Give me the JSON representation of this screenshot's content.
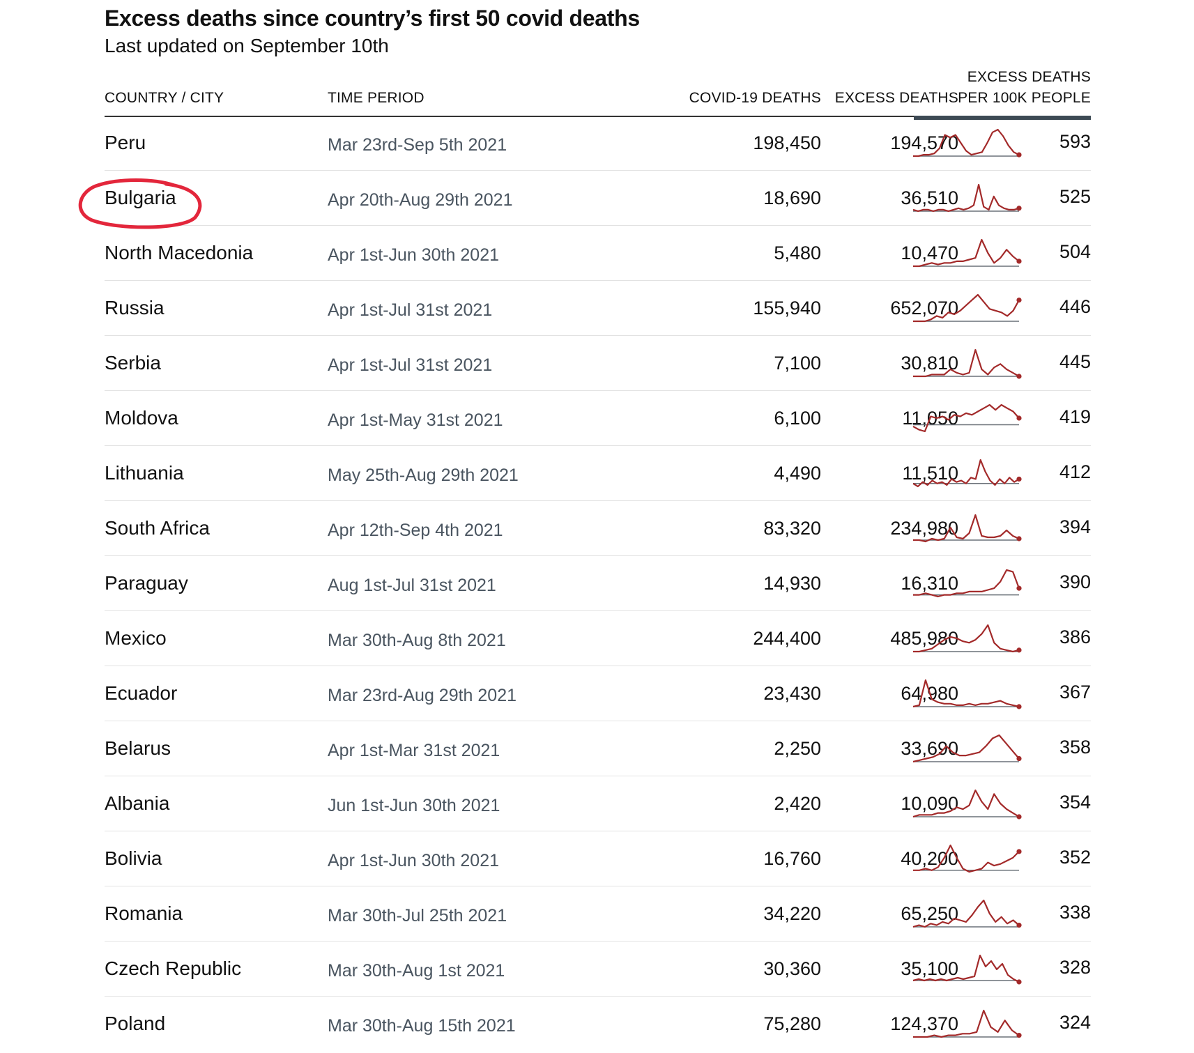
{
  "header": {
    "title": "Excess deaths since country’s first 50 covid deaths",
    "subtitle": "Last updated on September 10th"
  },
  "columns": {
    "country": "COUNTRY / CITY",
    "period": "TIME PERIOD",
    "covid": "COVID-19 DEATHS",
    "excess": "EXCESS DEATHS",
    "per100k_line1": "EXCESS DEATHS",
    "per100k_line2": "PER 100K PEOPLE"
  },
  "colors": {
    "spark_line": "#a32a2a",
    "baseline": "#6a7178",
    "annotation": "#e3263b"
  },
  "highlighted_row": "Bulgaria",
  "rows": [
    {
      "country": "Peru",
      "period": "Mar 23rd-Sep 5th 2021",
      "covid": "198,450",
      "excess": "194,570",
      "per100k": "593",
      "trend": [
        0,
        0,
        1,
        1,
        2,
        6,
        16,
        14,
        16,
        10,
        4,
        1,
        2,
        3,
        10,
        18,
        20,
        15,
        8,
        3,
        1
      ]
    },
    {
      "country": "Bulgaria",
      "period": "Apr 20th-Aug 29th 2021",
      "covid": "18,690",
      "excess": "36,510",
      "per100k": "525",
      "trend": [
        1,
        0,
        1,
        1,
        0,
        1,
        1,
        0,
        1,
        2,
        1,
        2,
        4,
        18,
        3,
        1,
        10,
        4,
        2,
        1,
        1,
        2
      ]
    },
    {
      "country": "North Macedonia",
      "period": "Apr 1st-Jun 30th 2021",
      "covid": "5,480",
      "excess": "10,470",
      "per100k": "504",
      "trend": [
        0,
        0,
        1,
        2,
        1,
        2,
        2,
        3,
        3,
        4,
        5,
        16,
        8,
        2,
        5,
        10,
        6,
        3
      ]
    },
    {
      "country": "Russia",
      "period": "Apr 1st-Jul 31st 2021",
      "covid": "155,940",
      "excess": "652,070",
      "per100k": "446",
      "trend": [
        0,
        0,
        0,
        1,
        3,
        2,
        5,
        4,
        6,
        9,
        12,
        15,
        11,
        7,
        6,
        5,
        3,
        6,
        12
      ]
    },
    {
      "country": "Serbia",
      "period": "Apr 1st-Jul 31st 2021",
      "covid": "7,100",
      "excess": "30,810",
      "per100k": "445",
      "trend": [
        0,
        0,
        0,
        1,
        1,
        1,
        4,
        2,
        1,
        2,
        15,
        4,
        1,
        5,
        7,
        4,
        2,
        0
      ]
    },
    {
      "country": "Moldova",
      "period": "Apr 1st-May 31st 2021",
      "covid": "6,100",
      "excess": "11,050",
      "per100k": "419",
      "trend": [
        -1,
        -3,
        -4,
        5,
        4,
        5,
        3,
        6,
        5,
        7,
        6,
        8,
        10,
        12,
        9,
        12,
        10,
        8,
        4
      ]
    },
    {
      "country": "Lithuania",
      "period": "May 25th-Aug 29th 2021",
      "covid": "4,490",
      "excess": "11,510",
      "per100k": "412",
      "trend": [
        0,
        -2,
        1,
        -1,
        2,
        0,
        1,
        -1,
        3,
        1,
        2,
        0,
        4,
        3,
        16,
        8,
        2,
        -1,
        3,
        0,
        4,
        1,
        3
      ]
    },
    {
      "country": "South Africa",
      "period": "Apr 12th-Sep 4th 2021",
      "covid": "83,320",
      "excess": "234,980",
      "per100k": "394",
      "trend": [
        0,
        0,
        -1,
        1,
        0,
        1,
        9,
        2,
        1,
        5,
        18,
        3,
        2,
        2,
        3,
        7,
        3,
        1
      ]
    },
    {
      "country": "Paraguay",
      "period": "Aug 1st-Jul 31st 2021",
      "covid": "14,930",
      "excess": "16,310",
      "per100k": "390",
      "trend": [
        0,
        0,
        1,
        0,
        -1,
        0,
        0,
        1,
        1,
        2,
        2,
        2,
        3,
        4,
        8,
        15,
        14,
        4
      ]
    },
    {
      "country": "Mexico",
      "period": "Mar 30th-Aug 8th 2021",
      "covid": "244,400",
      "excess": "485,980",
      "per100k": "386",
      "trend": [
        0,
        0,
        1,
        2,
        5,
        8,
        10,
        9,
        7,
        6,
        8,
        12,
        18,
        6,
        2,
        1,
        0,
        1
      ]
    },
    {
      "country": "Ecuador",
      "period": "Mar 23rd-Aug 29th 2021",
      "covid": "23,430",
      "excess": "64,980",
      "per100k": "367",
      "trend": [
        0,
        1,
        18,
        5,
        3,
        2,
        2,
        1,
        1,
        2,
        1,
        2,
        2,
        3,
        4,
        2,
        1,
        0
      ]
    },
    {
      "country": "Belarus",
      "period": "Apr 1st-Mar 31st 2021",
      "covid": "2,250",
      "excess": "33,690",
      "per100k": "358",
      "trend": [
        0,
        1,
        2,
        3,
        5,
        10,
        6,
        4,
        4,
        5,
        6,
        10,
        15,
        17,
        12,
        7,
        2
      ]
    },
    {
      "country": "Albania",
      "period": "Jun 1st-Jun 30th 2021",
      "covid": "2,420",
      "excess": "10,090",
      "per100k": "354",
      "trend": [
        0,
        1,
        1,
        1,
        2,
        2,
        3,
        5,
        4,
        6,
        14,
        8,
        4,
        12,
        7,
        4,
        2,
        0
      ]
    },
    {
      "country": "Bolivia",
      "period": "Apr 1st-Jun 30th 2021",
      "covid": "16,760",
      "excess": "40,200",
      "per100k": "352",
      "trend": [
        0,
        0,
        1,
        0,
        2,
        8,
        16,
        8,
        1,
        -1,
        0,
        1,
        5,
        3,
        4,
        6,
        8,
        12
      ]
    },
    {
      "country": "Romania",
      "period": "Mar 30th-Jul 25th 2021",
      "covid": "34,220",
      "excess": "65,250",
      "per100k": "338",
      "trend": [
        0,
        1,
        0,
        2,
        1,
        3,
        2,
        5,
        4,
        3,
        7,
        12,
        16,
        8,
        3,
        6,
        2,
        4,
        1
      ]
    },
    {
      "country": "Czech Republic",
      "period": "Mar 30th-Aug 1st 2021",
      "covid": "30,360",
      "excess": "35,100",
      "per100k": "328",
      "trend": [
        0,
        1,
        0,
        1,
        0,
        1,
        0,
        1,
        2,
        1,
        2,
        3,
        18,
        10,
        14,
        8,
        12,
        4,
        1,
        -1
      ]
    },
    {
      "country": "Poland",
      "period": "Mar 30th-Aug 15th 2021",
      "covid": "75,280",
      "excess": "124,370",
      "per100k": "324",
      "trend": [
        0,
        0,
        0,
        1,
        0,
        1,
        1,
        2,
        2,
        3,
        16,
        6,
        3,
        10,
        4,
        1
      ]
    }
  ]
}
